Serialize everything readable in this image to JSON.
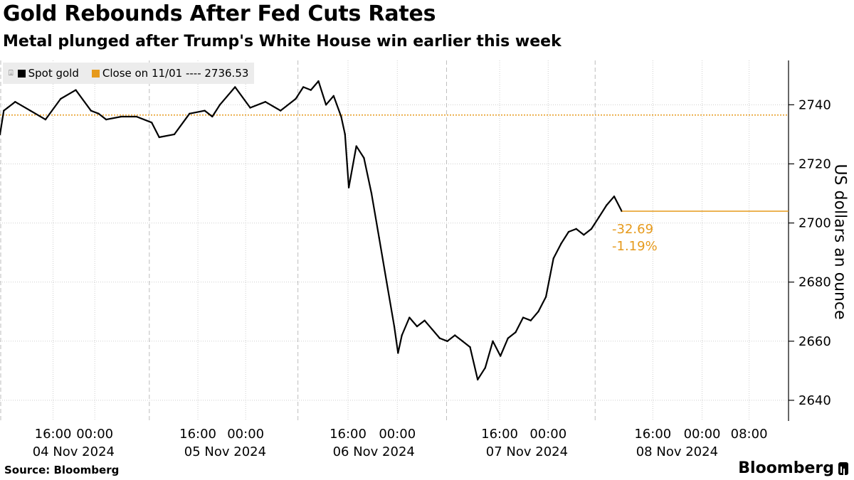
{
  "chart_data": {
    "type": "line",
    "title": "Gold Rebounds After Fed Cuts Rates",
    "subtitle": "Metal plunged after Trump's White House win earlier this week",
    "ylabel": "US dollars an ounce",
    "ylim": [
      2633,
      2755
    ],
    "yticks": [
      2640,
      2660,
      2680,
      2700,
      2720,
      2740
    ],
    "xlim": [
      0,
      104
    ],
    "series": [
      {
        "name": "Spot gold",
        "color": "#000000",
        "x": [
          0,
          0.5,
          1,
          2,
          4,
          6,
          8,
          10,
          12,
          13,
          14,
          16,
          18,
          20,
          21,
          23,
          25,
          27,
          28,
          29,
          31,
          33,
          35,
          37,
          39,
          40,
          41,
          42,
          43,
          44,
          45,
          45.5,
          46,
          47,
          48,
          49,
          50,
          51,
          52,
          52.5,
          53,
          54,
          55,
          56,
          57,
          58,
          59,
          60,
          61,
          62,
          63,
          64,
          65,
          66,
          67,
          68,
          69,
          70,
          71,
          72,
          73,
          74,
          75,
          76,
          77,
          78,
          79,
          80,
          81,
          82
        ],
        "values": [
          2730,
          2738,
          2739,
          2741,
          2738,
          2735,
          2742,
          2745,
          2738,
          2737,
          2735,
          2736,
          2736,
          2734,
          2729,
          2730,
          2737,
          2738,
          2736,
          2740,
          2746,
          2739,
          2741,
          2738,
          2742,
          2746,
          2745,
          2748,
          2740,
          2743,
          2736,
          2730,
          2712,
          2726,
          2722,
          2710,
          2695,
          2680,
          2665,
          2656,
          2662,
          2668,
          2665,
          2667,
          2664,
          2661,
          2660,
          2662,
          2660,
          2658,
          2647,
          2651,
          2660,
          2655,
          2661,
          2663,
          2668,
          2667,
          2670,
          2675,
          2688,
          2693,
          2697,
          2698,
          2696,
          2698,
          2702,
          2706,
          2709,
          2704
        ]
      }
    ],
    "reference_line": {
      "label": "Close on 11/01 ---- 2736.53",
      "value": 2736.53,
      "color": "#e69a1c"
    },
    "last_value": 2704,
    "annotation": {
      "change": "-32.69",
      "pct": "-1.19%"
    },
    "day_boundaries": [
      0,
      19.6,
      39.2,
      58.8,
      78.4
    ],
    "xtick_labels": [
      {
        "x": 7,
        "text": "16:00"
      },
      {
        "x": 12.5,
        "text": "00:00"
      },
      {
        "x": 26.1,
        "text": "16:00"
      },
      {
        "x": 32.4,
        "text": "00:00"
      },
      {
        "x": 45.9,
        "text": "16:00"
      },
      {
        "x": 52.4,
        "text": "00:00"
      },
      {
        "x": 65.9,
        "text": "16:00"
      },
      {
        "x": 72.3,
        "text": "00:00"
      },
      {
        "x": 86.1,
        "text": "16:00"
      },
      {
        "x": 92.6,
        "text": "00:00"
      },
      {
        "x": 98.8,
        "text": "08:00"
      }
    ],
    "date_labels": [
      {
        "x": 9.7,
        "text": "04 Nov 2024"
      },
      {
        "x": 29.7,
        "text": "05 Nov 2024"
      },
      {
        "x": 49.3,
        "text": "06 Nov 2024"
      },
      {
        "x": 69.5,
        "text": "07 Nov 2024"
      },
      {
        "x": 89.3,
        "text": "08 Nov 2024"
      }
    ]
  },
  "legend": {
    "series_label": "Spot gold",
    "reference_label": "Close on 11/01 ---- 2736.53"
  },
  "footer": {
    "source": "Source: Bloomberg",
    "brand": "Bloomberg"
  }
}
